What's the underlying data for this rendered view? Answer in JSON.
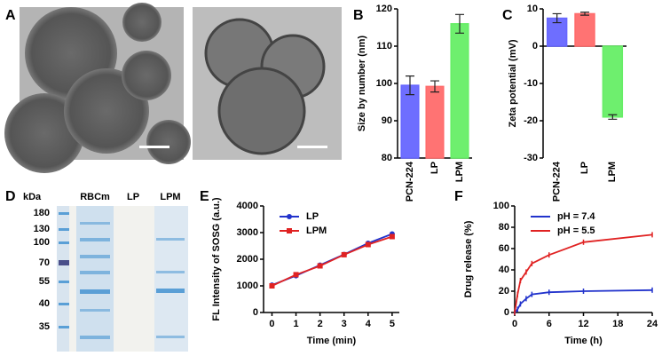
{
  "panels": [
    "A",
    "B",
    "C",
    "D",
    "E",
    "F"
  ],
  "gel": {
    "unit": "kDa",
    "markers": [
      180,
      130,
      100,
      70,
      55,
      40,
      35
    ],
    "lanes": [
      "RBCm",
      "LP",
      "LPM"
    ]
  },
  "chart_data": [
    {
      "type": "bar",
      "ylabel": "Size by number (nm)",
      "categories": [
        "PCN-224",
        "LP",
        "LPM"
      ],
      "values": [
        99.5,
        99.2,
        116
      ],
      "errors": [
        2.5,
        1.5,
        2.5
      ],
      "colors": [
        "#6666ff",
        "#ff6b6b",
        "#66ee66"
      ],
      "ylim": [
        80,
        120
      ],
      "yticks": [
        80,
        90,
        100,
        110,
        120
      ]
    },
    {
      "type": "bar",
      "ylabel": "Zeta potential (mV)",
      "categories": [
        "PCN-224",
        "LP",
        "LPM"
      ],
      "values": [
        7.5,
        8.7,
        -19
      ],
      "errors": [
        1.2,
        0.4,
        0.6
      ],
      "colors": [
        "#6666ff",
        "#ff6b6b",
        "#66ee66"
      ],
      "ylim": [
        -30,
        10
      ],
      "yticks": [
        -30,
        -20,
        -10,
        0,
        10
      ]
    },
    {
      "type": "line",
      "ylabel": "FL Intensity of SOSG (a.u.)",
      "xlabel": "Time (min)",
      "x": [
        0,
        1,
        2,
        3,
        4,
        5
      ],
      "series": [
        {
          "name": "LP",
          "color": "#2233cc",
          "marker": "circle",
          "values": [
            1030,
            1380,
            1780,
            2180,
            2600,
            2950
          ]
        },
        {
          "name": "LPM",
          "color": "#e02222",
          "marker": "square",
          "values": [
            1000,
            1420,
            1750,
            2170,
            2550,
            2850
          ]
        }
      ],
      "xlim": [
        -0.35,
        5.3
      ],
      "xticks": [
        0,
        1,
        2,
        3,
        4,
        5
      ],
      "ylim": [
        0,
        4000
      ],
      "yticks": [
        0,
        1000,
        2000,
        3000,
        4000
      ]
    },
    {
      "type": "line",
      "ylabel": "Drug release (%)",
      "xlabel": "Time (h)",
      "x": [
        0,
        0.5,
        1,
        2,
        3,
        6,
        12,
        24
      ],
      "series": [
        {
          "name": "pH = 7.4",
          "color": "#2233cc",
          "marker": "none",
          "values": [
            0,
            3,
            8,
            13,
            17,
            19,
            20,
            21
          ]
        },
        {
          "name": "pH = 5.5",
          "color": "#e02222",
          "marker": "none",
          "values": [
            0,
            17,
            30,
            38,
            46,
            54,
            66,
            73
          ]
        }
      ],
      "xlim": [
        0,
        24
      ],
      "xticks": [
        0,
        6,
        12,
        18,
        24
      ],
      "ylim": [
        0,
        100
      ],
      "yticks": [
        0,
        20,
        40,
        60,
        80,
        100
      ]
    }
  ]
}
